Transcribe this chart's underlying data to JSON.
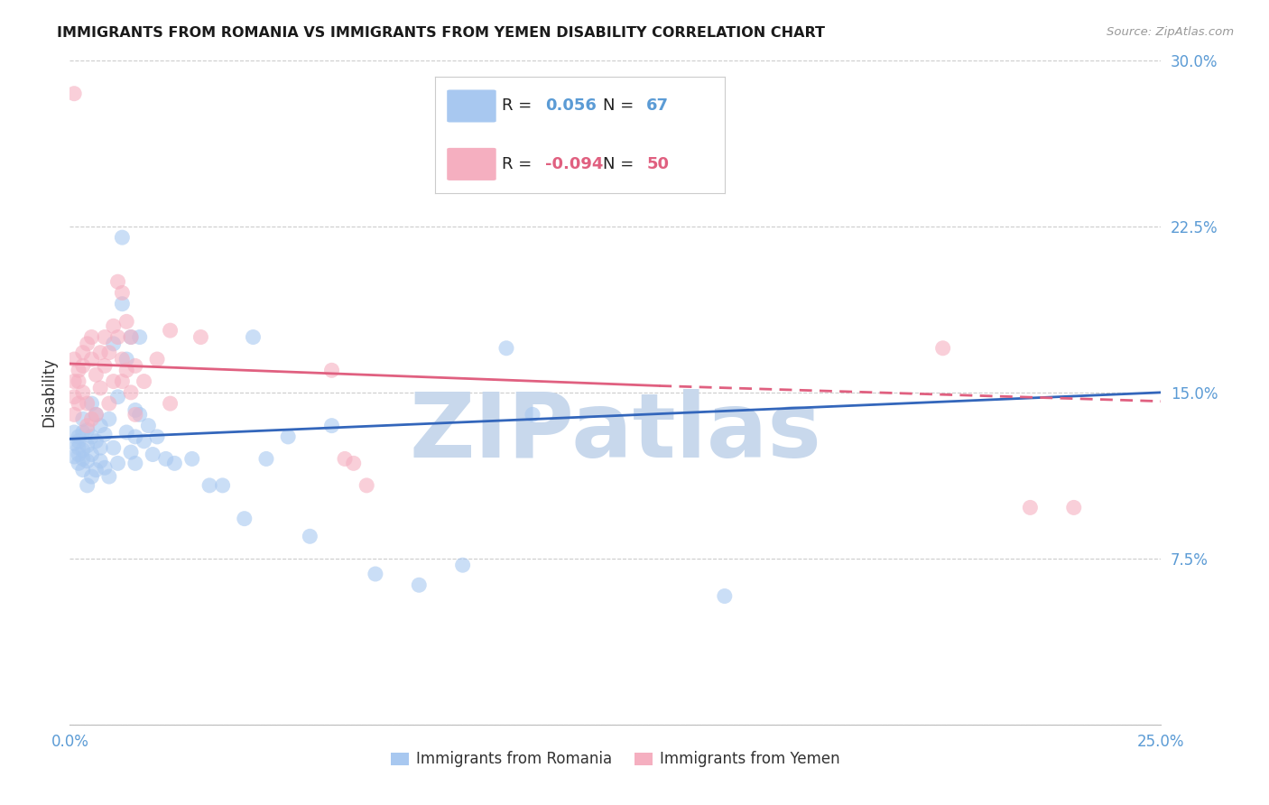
{
  "title": "IMMIGRANTS FROM ROMANIA VS IMMIGRANTS FROM YEMEN DISABILITY CORRELATION CHART",
  "source": "Source: ZipAtlas.com",
  "ylabel_label": "Disability",
  "xlim": [
    0.0,
    0.25
  ],
  "ylim": [
    0.0,
    0.3
  ],
  "legend_romania": "Immigrants from Romania",
  "legend_yemen": "Immigrants from Yemen",
  "R_romania": "0.056",
  "N_romania": "67",
  "R_yemen": "-0.094",
  "N_yemen": "50",
  "romania_color": "#a8c8f0",
  "yemen_color": "#f5afc0",
  "romania_line_color": "#3366bb",
  "yemen_line_color": "#e06080",
  "romania_line": [
    0.0,
    0.129,
    0.25,
    0.15
  ],
  "yemen_line_solid": [
    0.0,
    0.163,
    0.135,
    0.153
  ],
  "yemen_line_dashed": [
    0.135,
    0.153,
    0.25,
    0.146
  ],
  "romania_scatter_x": [
    0.001,
    0.001,
    0.001,
    0.002,
    0.002,
    0.002,
    0.002,
    0.002,
    0.003,
    0.003,
    0.003,
    0.003,
    0.003,
    0.004,
    0.004,
    0.004,
    0.004,
    0.005,
    0.005,
    0.005,
    0.005,
    0.006,
    0.006,
    0.006,
    0.007,
    0.007,
    0.007,
    0.008,
    0.008,
    0.009,
    0.009,
    0.01,
    0.01,
    0.011,
    0.011,
    0.012,
    0.012,
    0.013,
    0.013,
    0.014,
    0.014,
    0.015,
    0.015,
    0.015,
    0.016,
    0.016,
    0.017,
    0.018,
    0.019,
    0.02,
    0.022,
    0.024,
    0.028,
    0.032,
    0.04,
    0.042,
    0.055,
    0.06,
    0.1,
    0.106,
    0.15,
    0.07,
    0.08,
    0.09,
    0.045,
    0.05,
    0.035
  ],
  "romania_scatter_y": [
    0.127,
    0.132,
    0.121,
    0.13,
    0.125,
    0.118,
    0.128,
    0.122,
    0.124,
    0.132,
    0.12,
    0.138,
    0.115,
    0.126,
    0.119,
    0.133,
    0.108,
    0.13,
    0.145,
    0.122,
    0.112,
    0.128,
    0.14,
    0.115,
    0.135,
    0.119,
    0.125,
    0.116,
    0.131,
    0.138,
    0.112,
    0.172,
    0.125,
    0.148,
    0.118,
    0.19,
    0.22,
    0.165,
    0.132,
    0.175,
    0.123,
    0.142,
    0.118,
    0.13,
    0.175,
    0.14,
    0.128,
    0.135,
    0.122,
    0.13,
    0.12,
    0.118,
    0.12,
    0.108,
    0.093,
    0.175,
    0.085,
    0.135,
    0.17,
    0.14,
    0.058,
    0.068,
    0.063,
    0.072,
    0.12,
    0.13,
    0.108
  ],
  "yemen_scatter_x": [
    0.001,
    0.001,
    0.001,
    0.001,
    0.002,
    0.002,
    0.002,
    0.003,
    0.003,
    0.003,
    0.004,
    0.004,
    0.004,
    0.005,
    0.005,
    0.005,
    0.006,
    0.006,
    0.007,
    0.007,
    0.008,
    0.008,
    0.009,
    0.009,
    0.01,
    0.01,
    0.011,
    0.011,
    0.012,
    0.012,
    0.012,
    0.013,
    0.013,
    0.014,
    0.014,
    0.015,
    0.015,
    0.017,
    0.02,
    0.023,
    0.023,
    0.03,
    0.06,
    0.063,
    0.065,
    0.068,
    0.2,
    0.22,
    0.23,
    0.001
  ],
  "yemen_scatter_y": [
    0.155,
    0.148,
    0.14,
    0.165,
    0.16,
    0.145,
    0.155,
    0.168,
    0.15,
    0.162,
    0.172,
    0.145,
    0.135,
    0.165,
    0.138,
    0.175,
    0.158,
    0.14,
    0.168,
    0.152,
    0.175,
    0.162,
    0.168,
    0.145,
    0.18,
    0.155,
    0.2,
    0.175,
    0.195,
    0.165,
    0.155,
    0.182,
    0.16,
    0.175,
    0.15,
    0.162,
    0.14,
    0.155,
    0.165,
    0.178,
    0.145,
    0.175,
    0.16,
    0.12,
    0.118,
    0.108,
    0.17,
    0.098,
    0.098,
    0.285
  ],
  "background_color": "#ffffff",
  "grid_color": "#cccccc",
  "watermark": "ZIPatlas",
  "watermark_color": "#c8d8ec"
}
